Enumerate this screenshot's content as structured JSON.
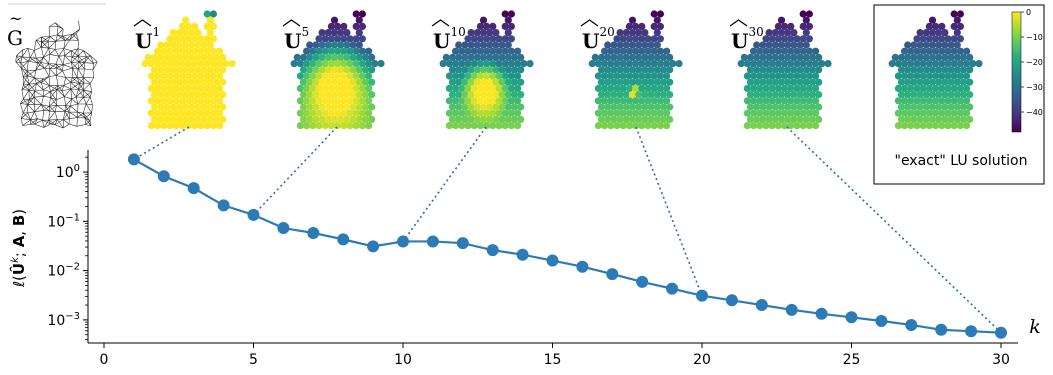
{
  "chart_data": {
    "type": "line",
    "x": [
      1,
      2,
      3,
      4,
      5,
      6,
      7,
      8,
      9,
      10,
      11,
      12,
      13,
      14,
      15,
      16,
      17,
      18,
      19,
      20,
      21,
      22,
      23,
      24,
      25,
      26,
      27,
      28,
      29,
      30
    ],
    "series": [
      {
        "values": [
          1.8,
          0.82,
          0.47,
          0.21,
          0.135,
          0.073,
          0.058,
          0.043,
          0.031,
          0.039,
          0.039,
          0.036,
          0.026,
          0.021,
          0.016,
          0.012,
          0.0085,
          0.0059,
          0.0043,
          0.0031,
          0.0025,
          0.002,
          0.0016,
          0.00133,
          0.00113,
          0.00095,
          0.00079,
          0.00063,
          0.00059,
          0.00055
        ]
      }
    ],
    "xlabel": "k",
    "ylabel": "ℓ(Û^k; A, B)",
    "xlim": [
      0,
      30.5
    ],
    "ylim": [
      0.00035,
      2.6
    ],
    "yscale": "log",
    "xticks": [
      "0",
      "5",
      "10",
      "15",
      "20",
      "25",
      "30"
    ],
    "yticks": [
      {
        "base": "10",
        "exp": "0",
        "value": 1
      },
      {
        "base": "10",
        "exp": "−1",
        "value": 0.1
      },
      {
        "base": "10",
        "exp": "−2",
        "value": 0.01
      },
      {
        "base": "10",
        "exp": "−3",
        "value": 0.001
      }
    ],
    "grid": false,
    "color": "#2c7bb6",
    "thumbnails": [
      {
        "base": "U",
        "sup": "1",
        "iteration": 1
      },
      {
        "base": "U",
        "sup": "5",
        "iteration": 5
      },
      {
        "base": "U",
        "sup": "10",
        "iteration": 10
      },
      {
        "base": "U",
        "sup": "20",
        "iteration": 20
      },
      {
        "base": "U",
        "sup": "30",
        "iteration": 30
      }
    ],
    "graph_label": "G",
    "inset": {
      "caption": "\"exact\" LU solution",
      "colorbar_ticks": [
        "0",
        "−10",
        "−20",
        "−30",
        "−40"
      ],
      "colorbar_values": [
        0,
        -10,
        -20,
        -30,
        -40
      ],
      "colorbar_range": [
        -48,
        0
      ]
    }
  }
}
